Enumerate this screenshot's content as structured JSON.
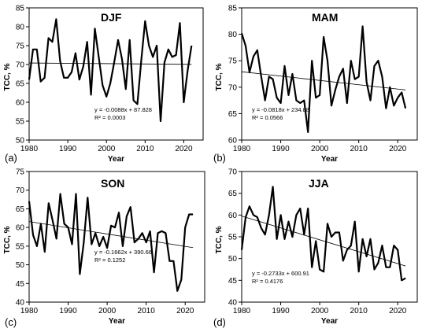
{
  "chart_data": [
    {
      "type": "line",
      "panel_label": "(a)",
      "title": "DJF",
      "xlabel": "Year",
      "ylabel": "TCC, %",
      "xlim": [
        1980,
        2025
      ],
      "ylim": [
        50,
        85
      ],
      "xticks": [
        1980,
        1990,
        2000,
        2010,
        2020
      ],
      "yticks": [
        50,
        55,
        60,
        65,
        70,
        75,
        80,
        85
      ],
      "trend": {
        "slope": -0.0088,
        "intercept": 87.828
      },
      "equation": "y = -0.0088x + 87.828",
      "r2": "R² = 0.0003",
      "x": [
        1980,
        1981,
        1982,
        1983,
        1984,
        1985,
        1986,
        1987,
        1988,
        1989,
        1990,
        1991,
        1992,
        1993,
        1994,
        1995,
        1996,
        1997,
        1998,
        1999,
        2000,
        2001,
        2002,
        2003,
        2004,
        2005,
        2006,
        2007,
        2008,
        2009,
        2010,
        2011,
        2012,
        2013,
        2014,
        2015,
        2016,
        2017,
        2018,
        2019,
        2020,
        2021,
        2022
      ],
      "y": [
        66,
        74,
        74,
        65.5,
        66.5,
        77,
        76,
        82,
        71,
        66.5,
        66.5,
        68,
        73,
        66,
        69.5,
        76,
        62,
        79.5,
        72,
        64.5,
        61.5,
        65,
        70.5,
        76.5,
        71.5,
        63.5,
        76.5,
        60.5,
        59.5,
        71,
        81.5,
        75,
        72,
        75,
        55,
        70.5,
        74,
        72,
        72.5,
        81,
        60,
        68.5,
        75
      ]
    },
    {
      "type": "line",
      "panel_label": "(b)",
      "title": "MAM",
      "xlabel": "Year",
      "ylabel": "TCC, %",
      "xlim": [
        1980,
        2025
      ],
      "ylim": [
        60,
        85
      ],
      "xticks": [
        1980,
        1990,
        2000,
        2010,
        2020
      ],
      "yticks": [
        60,
        65,
        70,
        75,
        80,
        85
      ],
      "trend": {
        "slope": -0.0818,
        "intercept": 234.88
      },
      "equation": "y = -0.0818x + 234.88",
      "r2": "R² = 0.0566",
      "x": [
        1980,
        1981,
        1982,
        1983,
        1984,
        1985,
        1986,
        1987,
        1988,
        1989,
        1990,
        1991,
        1992,
        1993,
        1994,
        1995,
        1996,
        1997,
        1998,
        1999,
        2000,
        2001,
        2002,
        2003,
        2004,
        2005,
        2006,
        2007,
        2008,
        2009,
        2010,
        2011,
        2012,
        2013,
        2014,
        2015,
        2016,
        2017,
        2018,
        2019,
        2020,
        2021,
        2022
      ],
      "y": [
        80.2,
        77.8,
        72.8,
        75.8,
        77,
        72,
        67.5,
        72,
        71.5,
        68,
        67,
        74,
        68.5,
        72.5,
        67.5,
        67,
        67.5,
        61.5,
        75,
        68,
        68.5,
        79.5,
        75,
        66.5,
        69.5,
        72,
        73.5,
        67,
        75,
        71.5,
        72,
        81.5,
        71,
        67.5,
        74,
        75,
        72,
        66,
        70,
        66.5,
        68,
        69,
        66
      ]
    },
    {
      "type": "line",
      "panel_label": "(c)",
      "title": "SON",
      "xlabel": "Year",
      "ylabel": "TCC, %",
      "xlim": [
        1980,
        2025
      ],
      "ylim": [
        40,
        75
      ],
      "xticks": [
        1980,
        1990,
        2000,
        2010,
        2020
      ],
      "yticks": [
        40,
        45,
        50,
        55,
        60,
        65,
        70,
        75
      ],
      "trend": {
        "slope": -0.1662,
        "intercept": 390.66
      },
      "equation": "y = -0.1662x + 390.66",
      "r2": "R² = 0.1252",
      "x": [
        1980,
        1981,
        1982,
        1983,
        1984,
        1985,
        1986,
        1987,
        1988,
        1989,
        1990,
        1991,
        1992,
        1993,
        1994,
        1995,
        1996,
        1997,
        1998,
        1999,
        2000,
        2001,
        2002,
        2003,
        2004,
        2005,
        2006,
        2007,
        2008,
        2009,
        2010,
        2011,
        2012,
        2013,
        2014,
        2015,
        2016,
        2017,
        2018,
        2019,
        2020,
        2021,
        2022
      ],
      "y": [
        67,
        58,
        55,
        61,
        53.5,
        66.5,
        62,
        57,
        69,
        61,
        60,
        55.5,
        69,
        47.5,
        56,
        68,
        55.5,
        58.5,
        55,
        57.5,
        54.5,
        60.5,
        60,
        64,
        55,
        63,
        65.5,
        56,
        57,
        58.5,
        56,
        59,
        48,
        58.5,
        59,
        58.5,
        51,
        51,
        43,
        46,
        60,
        63.5,
        63.5
      ]
    },
    {
      "type": "line",
      "panel_label": "(d)",
      "title": "JJA",
      "xlabel": "Year",
      "ylabel": "TCC, %",
      "xlim": [
        1980,
        2025
      ],
      "ylim": [
        40,
        70
      ],
      "xticks": [
        1980,
        1990,
        2000,
        2010,
        2020
      ],
      "yticks": [
        40,
        45,
        50,
        55,
        60,
        65,
        70
      ],
      "trend": {
        "slope": -0.2733,
        "intercept": 600.91
      },
      "equation": "y = -0.2733x + 600.91",
      "r2": "R² = 0.4176",
      "x": [
        1980,
        1981,
        1982,
        1983,
        1984,
        1985,
        1986,
        1987,
        1988,
        1989,
        1990,
        1991,
        1992,
        1993,
        1994,
        1995,
        1996,
        1997,
        1998,
        1999,
        2000,
        2001,
        2002,
        2003,
        2004,
        2005,
        2006,
        2007,
        2008,
        2009,
        2010,
        2011,
        2012,
        2013,
        2014,
        2015,
        2016,
        2017,
        2018,
        2019,
        2020,
        2021,
        2022
      ],
      "y": [
        52,
        59.5,
        62,
        60,
        59.5,
        57,
        55.5,
        60,
        66.5,
        54.5,
        60,
        54.5,
        58.5,
        55,
        60,
        61.5,
        55.5,
        61.5,
        48,
        54,
        47.5,
        47,
        58,
        55,
        56,
        56,
        49.5,
        52,
        53,
        58.5,
        47,
        54.5,
        50.5,
        54.5,
        47.5,
        49,
        53,
        48,
        48,
        53,
        52,
        45,
        45.5
      ]
    }
  ]
}
